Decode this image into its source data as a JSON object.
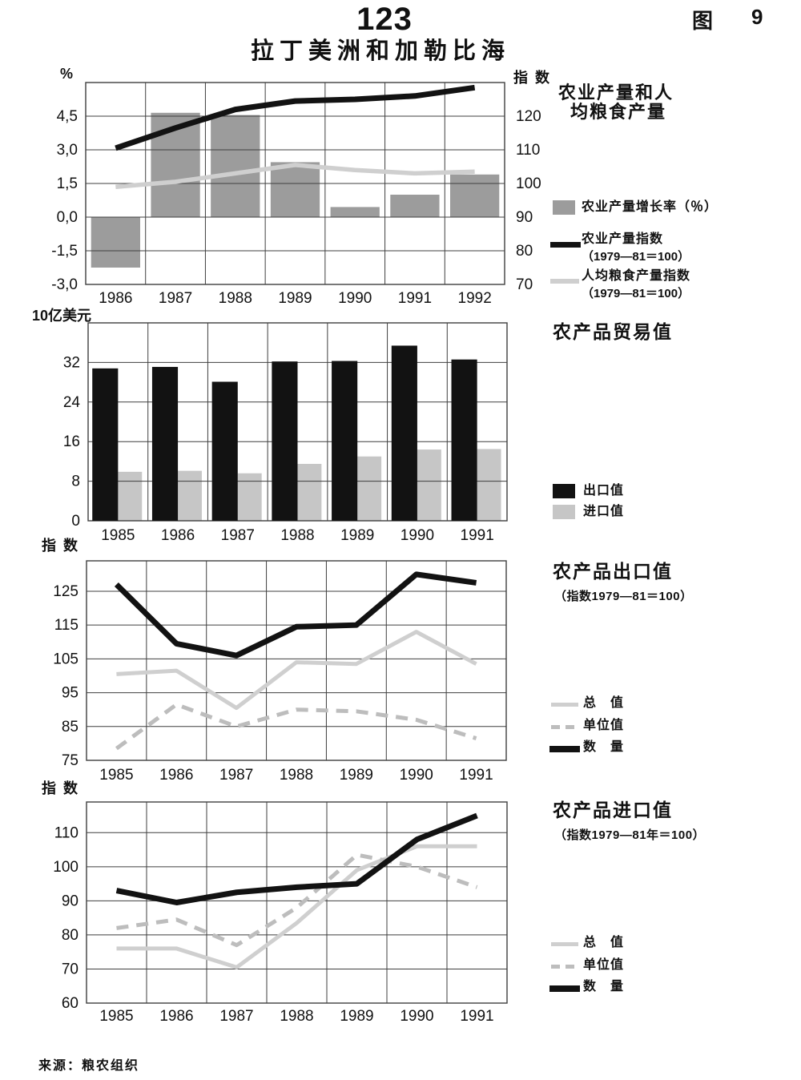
{
  "page": {
    "number": "123",
    "figure_label": "图",
    "figure_number": "9",
    "title": "拉丁美洲和加勒比海",
    "source": "来源：粮农组织"
  },
  "colors": {
    "black": "#121212",
    "bar_gray": "#9c9c9c",
    "import_gray": "#c6c6c6",
    "light_gray": "#cfcfcf",
    "dash_gray": "#bdbdbd",
    "grid": "#3f3f3f"
  },
  "chart_data": [
    {
      "id": "agricultural-production-and-per-capita-food-production",
      "type": "bar+line",
      "title": "农业产量和人均粮食产量",
      "title_lines": [
        "农业产量和人",
        "均粮食产量"
      ],
      "legend_position": "right",
      "grid": true,
      "categories": [
        "1986",
        "1987",
        "1988",
        "1989",
        "1990",
        "1991",
        "1992"
      ],
      "left_axis": {
        "label": "%",
        "min": -3,
        "max": 6,
        "ticks": [
          4.5,
          3,
          1.5,
          0,
          -1.5,
          -3
        ],
        "tick_labels": [
          "4,5",
          "3,0",
          "1,5",
          "0,0",
          "-1,5",
          "-3,0"
        ]
      },
      "right_axis": {
        "label": "指 数",
        "min": 70,
        "max": 130,
        "ticks": [
          120,
          110,
          100,
          90,
          80,
          70
        ]
      },
      "series": [
        {
          "name": "农业产量增长率（％）",
          "type": "bar",
          "axis": "left",
          "color_key": "bar_gray",
          "bar_offset": -0.41,
          "bar_width": 0.82,
          "values": [
            -2.25,
            4.65,
            4.55,
            2.45,
            0.45,
            1.0,
            1.9
          ]
        },
        {
          "name": "农业产量指数",
          "subtitle": "（1979—81＝100）",
          "type": "line",
          "axis": "right",
          "color_key": "black",
          "width": 7,
          "values": [
            110.5,
            116.5,
            122,
            124.5,
            125,
            126,
            128.5
          ]
        },
        {
          "name": "人均粮食产量指数",
          "subtitle": "（1979—81＝100）",
          "type": "line",
          "axis": "right",
          "color_key": "light_gray",
          "width": 5.5,
          "values": [
            99,
            100.5,
            103,
            105.5,
            104,
            103,
            103.5
          ]
        }
      ]
    },
    {
      "id": "agricultural-trade-value",
      "type": "bar",
      "title": "农产品贸易值",
      "legend_position": "right",
      "grid": true,
      "categories": [
        "1985",
        "1986",
        "1987",
        "1988",
        "1989",
        "1990",
        "1991"
      ],
      "left_axis": {
        "label": "10亿美元",
        "min": 0,
        "max": 40,
        "ticks": [
          32,
          24,
          16,
          8,
          0
        ]
      },
      "series": [
        {
          "name": "出口值",
          "type": "bar",
          "axis": "left",
          "color_key": "black",
          "bar_offset": -0.43,
          "bar_width": 0.43,
          "values": [
            30.8,
            31.1,
            28.1,
            32.2,
            32.3,
            35.4,
            32.6
          ]
        },
        {
          "name": "进口值",
          "type": "bar",
          "axis": "left",
          "color_key": "import_gray",
          "bar_offset": 0,
          "bar_width": 0.4,
          "values": [
            9.9,
            10.1,
            9.6,
            11.5,
            13.0,
            14.4,
            14.5
          ]
        }
      ]
    },
    {
      "id": "agricultural-export-value-index",
      "type": "line",
      "title": "农产品出口值",
      "subtitle": "（指数1979—81＝100）",
      "legend_position": "right",
      "grid": true,
      "categories": [
        "1985",
        "1986",
        "1987",
        "1988",
        "1989",
        "1990",
        "1991"
      ],
      "left_axis": {
        "label": "指 数",
        "min": 75,
        "max": 134,
        "ticks": [
          125,
          115,
          105,
          95,
          85,
          75
        ]
      },
      "series": [
        {
          "name": "总　值",
          "type": "line",
          "axis": "left",
          "color_key": "light_gray",
          "width": 5,
          "values": [
            100.5,
            101.5,
            90.5,
            104,
            103.5,
            113,
            103.5
          ]
        },
        {
          "name": "单位值",
          "type": "line",
          "axis": "left",
          "color_key": "dash_gray",
          "width": 5,
          "dashed": true,
          "values": [
            78.5,
            91.5,
            85,
            90,
            89.5,
            87,
            81.5
          ]
        },
        {
          "name": "数　量",
          "type": "line",
          "axis": "left",
          "color_key": "black",
          "width": 7,
          "values": [
            127,
            109.5,
            106,
            114.5,
            115,
            130,
            127.5
          ]
        }
      ]
    },
    {
      "id": "agricultural-import-value-index",
      "type": "line",
      "title": "农产品进口值",
      "subtitle": "（指数1979—81年＝100）",
      "legend_position": "right",
      "grid": true,
      "categories": [
        "1985",
        "1986",
        "1987",
        "1988",
        "1989",
        "1990",
        "1991"
      ],
      "left_axis": {
        "label": "指 数",
        "min": 60,
        "max": 119,
        "ticks": [
          110,
          100,
          90,
          80,
          70,
          60
        ]
      },
      "series": [
        {
          "name": "总　值",
          "type": "line",
          "axis": "left",
          "color_key": "light_gray",
          "width": 5,
          "values": [
            76,
            76,
            70.5,
            83.5,
            99,
            106,
            106
          ]
        },
        {
          "name": "单位值",
          "type": "line",
          "axis": "left",
          "color_key": "dash_gray",
          "width": 5,
          "dashed": true,
          "values": [
            82,
            84.5,
            77,
            88,
            103.5,
            100,
            94
          ]
        },
        {
          "name": "数　量",
          "type": "line",
          "axis": "left",
          "color_key": "black",
          "width": 7,
          "values": [
            93,
            89.5,
            92.5,
            94,
            95,
            108,
            115
          ]
        }
      ]
    }
  ]
}
